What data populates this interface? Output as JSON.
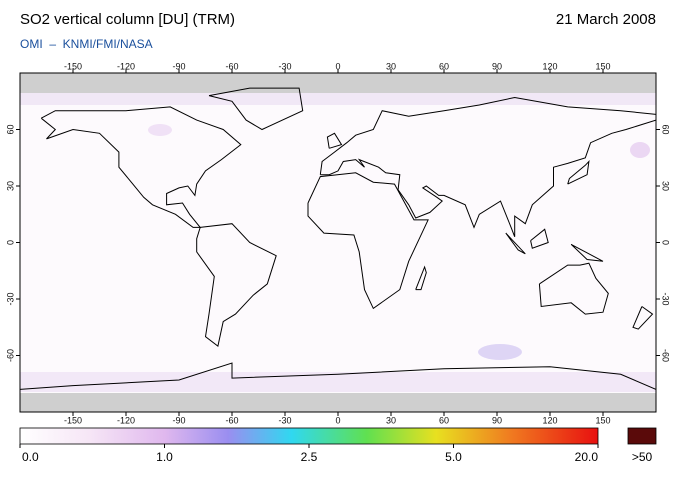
{
  "header": {
    "title": "SO2 vertical column [DU] (TRM)",
    "date": "21 March 2008",
    "subtitle": "OMI  –  KNMI/FMI/NASA"
  },
  "map": {
    "lon_ticks": [
      -150,
      -120,
      -90,
      -60,
      -30,
      0,
      30,
      60,
      90,
      120,
      150
    ],
    "lat_ticks": [
      60,
      30,
      0,
      -30,
      -60
    ]
  },
  "colorbar": {
    "labels": [
      "0.0",
      "1.0",
      "2.5",
      "5.0",
      "20.0"
    ],
    "overflow_label": ">50"
  }
}
